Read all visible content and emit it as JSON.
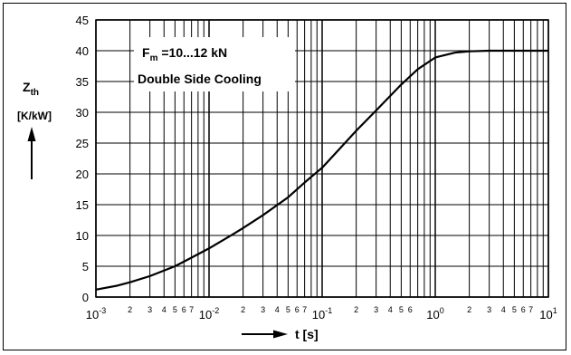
{
  "chart_data": {
    "type": "line",
    "ylabel_main": "Z",
    "ylabel_sub": "th",
    "yunit": "[K/kW]",
    "xlabel": "t [s]",
    "annotation": {
      "line1_main": "F",
      "line1_sub": "m",
      "line1_rest": " =10...12 kN",
      "line2": "Double Side Cooling"
    },
    "xscale": "log",
    "xlim": [
      0.001,
      10
    ],
    "ylim": [
      0,
      45
    ],
    "grid": true,
    "y_ticks": [
      0,
      5,
      10,
      15,
      20,
      25,
      30,
      35,
      40,
      45
    ],
    "x_decades": [
      {
        "base": "10",
        "exp": "-3",
        "value": 0.001
      },
      {
        "base": "10",
        "exp": "-2",
        "value": 0.01
      },
      {
        "base": "10",
        "exp": "-1",
        "value": 0.1
      },
      {
        "base": "10",
        "exp": "0",
        "value": 1
      },
      {
        "base": "10",
        "exp": "1",
        "value": 10
      }
    ],
    "x_minor_labels": [
      [
        "2",
        "3",
        "4",
        "5",
        "6",
        "7"
      ],
      [
        "2",
        "3",
        "4",
        "5",
        "6",
        "7"
      ],
      [
        "2",
        "3",
        "4",
        "5",
        "6"
      ],
      [
        "2",
        "3",
        "4",
        "5",
        "6",
        "7"
      ]
    ],
    "series": [
      {
        "x": [
          0.001,
          0.0015,
          0.002,
          0.003,
          0.005,
          0.007,
          0.01,
          0.015,
          0.02,
          0.03,
          0.05,
          0.07,
          0.1,
          0.15,
          0.2,
          0.3,
          0.5,
          0.7,
          1.0,
          1.5,
          2.0,
          3.0,
          5.0,
          7.0,
          10.0
        ],
        "y": [
          1.2,
          1.8,
          2.4,
          3.4,
          5.0,
          6.4,
          7.9,
          9.8,
          11.2,
          13.3,
          16.2,
          18.6,
          21.0,
          24.5,
          27.0,
          30.3,
          34.5,
          37.0,
          38.9,
          39.7,
          39.9,
          40.0,
          40.0,
          40.0,
          40.0
        ]
      }
    ]
  }
}
